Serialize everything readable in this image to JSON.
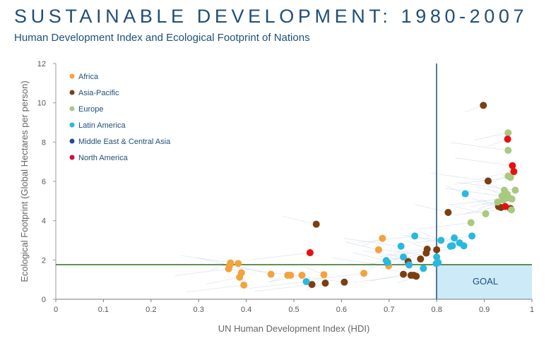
{
  "page": {
    "title": "SUSTAINABLE DEVELOPMENT: 1980-2007",
    "subtitle": "Human Development Index and Ecological Footprint of Nations"
  },
  "chart_data": {
    "type": "scatter",
    "xlabel": "UN Human Development Index (HDI)",
    "ylabel": "Ecological Footprint (Global Hectares per person)",
    "xlim": [
      0,
      1
    ],
    "ylim": [
      0,
      12
    ],
    "xticks": [
      "0",
      "0.1",
      "0.2",
      "0.3",
      "0.4",
      "0.5",
      "0.6",
      "0.7",
      "0.8",
      "0.9",
      "1"
    ],
    "yticks": [
      "0",
      "2",
      "4",
      "6",
      "8",
      "10",
      "12"
    ],
    "grid": false,
    "legend_position": "top-left",
    "goal": {
      "label": "GOAL",
      "hdi_threshold": 0.8,
      "footprint_threshold": 1.8
    },
    "series": [
      {
        "name": "Africa",
        "color": "#f4a23c",
        "points": [
          [
            0.363,
            1.55
          ],
          [
            0.365,
            1.72
          ],
          [
            0.367,
            1.85
          ],
          [
            0.383,
            1.82
          ],
          [
            0.386,
            1.12
          ],
          [
            0.39,
            1.35
          ],
          [
            0.395,
            0.72
          ],
          [
            0.452,
            1.27
          ],
          [
            0.487,
            1.22
          ],
          [
            0.493,
            1.22
          ],
          [
            0.517,
            1.22
          ],
          [
            0.563,
            1.25
          ],
          [
            0.647,
            1.32
          ],
          [
            0.678,
            2.52
          ],
          [
            0.686,
            3.1
          ],
          [
            0.699,
            1.7
          ]
        ]
      },
      {
        "name": "Asia-Pacific",
        "color": "#7b3f10",
        "points": [
          [
            0.538,
            0.75
          ],
          [
            0.547,
            3.82
          ],
          [
            0.566,
            0.82
          ],
          [
            0.606,
            0.87
          ],
          [
            0.73,
            1.27
          ],
          [
            0.74,
            1.92
          ],
          [
            0.746,
            1.22
          ],
          [
            0.752,
            1.22
          ],
          [
            0.757,
            1.17
          ],
          [
            0.766,
            2.05
          ],
          [
            0.778,
            2.35
          ],
          [
            0.78,
            2.55
          ],
          [
            0.8,
            2.52
          ],
          [
            0.824,
            4.42
          ],
          [
            0.898,
            9.87
          ],
          [
            0.908,
            6.02
          ],
          [
            0.93,
            4.72
          ],
          [
            0.935,
            4.67
          ],
          [
            0.955,
            4.62
          ]
        ]
      },
      {
        "name": "Europe",
        "color": "#a8c97f",
        "points": [
          [
            0.872,
            3.9
          ],
          [
            0.903,
            4.35
          ],
          [
            0.928,
            4.95
          ],
          [
            0.937,
            5.25
          ],
          [
            0.94,
            5.05
          ],
          [
            0.942,
            5.55
          ],
          [
            0.946,
            5.15
          ],
          [
            0.948,
            5.35
          ],
          [
            0.95,
            6.27
          ],
          [
            0.95,
            7.58
          ],
          [
            0.95,
            8.47
          ],
          [
            0.953,
            5.15
          ],
          [
            0.955,
            6.2
          ],
          [
            0.957,
            4.55
          ],
          [
            0.958,
            5.1
          ],
          [
            0.965,
            5.55
          ]
        ]
      },
      {
        "name": "Latin America",
        "color": "#28b8e0",
        "points": [
          [
            0.526,
            0.9
          ],
          [
            0.694,
            1.97
          ],
          [
            0.697,
            1.87
          ],
          [
            0.725,
            2.7
          ],
          [
            0.73,
            2.15
          ],
          [
            0.742,
            1.75
          ],
          [
            0.754,
            3.22
          ],
          [
            0.772,
            1.57
          ],
          [
            0.799,
            1.82
          ],
          [
            0.8,
            2.15
          ],
          [
            0.803,
            1.87
          ],
          [
            0.809,
            3.0
          ],
          [
            0.829,
            2.7
          ],
          [
            0.833,
            2.72
          ],
          [
            0.837,
            3.12
          ],
          [
            0.848,
            2.87
          ],
          [
            0.857,
            2.72
          ],
          [
            0.86,
            5.37
          ],
          [
            0.874,
            3.22
          ]
        ]
      },
      {
        "name": "Middle East & Central Asia",
        "color": "#1f4e98",
        "points": []
      },
      {
        "name": "North America",
        "color": "#c8104a",
        "points": [
          [
            0.534,
            2.37
          ],
          [
            0.944,
            4.72
          ],
          [
            0.949,
            8.15
          ],
          [
            0.959,
            6.8
          ],
          [
            0.962,
            6.5
          ]
        ]
      }
    ]
  }
}
